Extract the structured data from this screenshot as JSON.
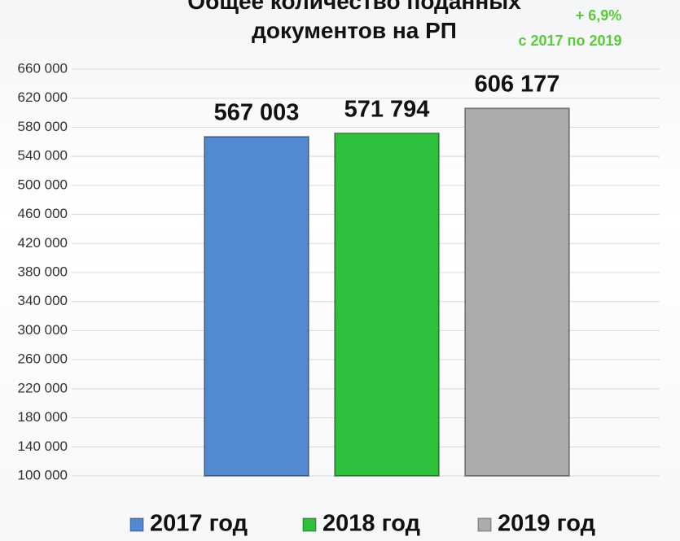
{
  "chart_data": {
    "type": "bar",
    "title": "Общее количество поданных документов на РП",
    "annotations": [
      "+ 6,9%",
      "с 2017 по 2019"
    ],
    "annotation_color": "#5cc83c",
    "categories": [
      "2017 год",
      "2018 год",
      "2019 год"
    ],
    "series": [
      {
        "name": "2017 год",
        "color": "#5389d0",
        "values": [
          567003,
          null,
          null
        ],
        "value_labels": [
          "567 003",
          null,
          null
        ]
      },
      {
        "name": "2018 год",
        "color": "#2ec03c",
        "values": [
          null,
          571794,
          null
        ],
        "value_labels": [
          null,
          "571 794",
          null
        ]
      },
      {
        "name": "2019 год",
        "color": "#ababab",
        "values": [
          null,
          null,
          606177
        ],
        "value_labels": [
          null,
          null,
          "606 177"
        ]
      }
    ],
    "ylim": [
      100000,
      660000
    ],
    "yticks": [
      {
        "value": 100000,
        "label": "100 000"
      },
      {
        "value": 140000,
        "label": "140 000"
      },
      {
        "value": 180000,
        "label": "180 000"
      },
      {
        "value": 220000,
        "label": "220 000"
      },
      {
        "value": 260000,
        "label": "260 000"
      },
      {
        "value": 300000,
        "label": "300 000"
      },
      {
        "value": 340000,
        "label": "340 000"
      },
      {
        "value": 380000,
        "label": "380 000"
      },
      {
        "value": 420000,
        "label": "420 000"
      },
      {
        "value": 460000,
        "label": "460 000"
      },
      {
        "value": 500000,
        "label": "500 000"
      },
      {
        "value": 540000,
        "label": "540 000"
      },
      {
        "value": 580000,
        "label": "580 000"
      },
      {
        "value": 620000,
        "label": "620 000"
      },
      {
        "value": 660000,
        "label": "660 000"
      }
    ],
    "grid": true,
    "legend": "bottom"
  }
}
